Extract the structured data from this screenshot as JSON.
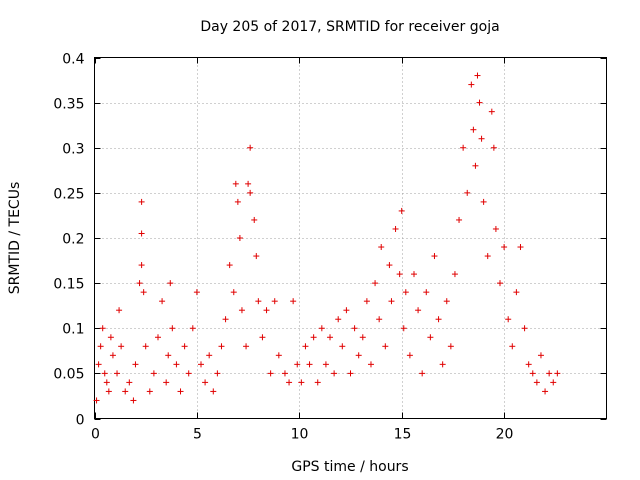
{
  "chart_data": {
    "type": "scatter",
    "title": "Day 205 of 2017, SRMTID for receiver goja",
    "xlabel": "GPS time / hours",
    "ylabel": "SRMTID / TECUs",
    "xlim": [
      0,
      25
    ],
    "ylim": [
      0,
      0.4
    ],
    "xticks": [
      0,
      5,
      10,
      15,
      20
    ],
    "yticks": [
      0,
      0.05,
      0.1,
      0.15,
      0.2,
      0.25,
      0.3,
      0.35,
      0.4
    ],
    "xtick_labels": [
      "0",
      "5",
      "10",
      "15",
      "20"
    ],
    "ytick_labels": [
      "0",
      "0.05",
      "0.1",
      "0.15",
      "0.2",
      "0.25",
      "0.3",
      "0.35",
      "0.4"
    ],
    "marker": "+",
    "color": "#e00000",
    "grid": true,
    "series": [
      {
        "name": "SRMTID",
        "points": [
          [
            0.1,
            0.02
          ],
          [
            0.2,
            0.06
          ],
          [
            0.3,
            0.08
          ],
          [
            0.4,
            0.1
          ],
          [
            0.5,
            0.05
          ],
          [
            0.6,
            0.04
          ],
          [
            0.7,
            0.03
          ],
          [
            0.8,
            0.09
          ],
          [
            0.9,
            0.07
          ],
          [
            1.1,
            0.05
          ],
          [
            1.2,
            0.12
          ],
          [
            1.3,
            0.08
          ],
          [
            1.5,
            0.03
          ],
          [
            1.7,
            0.04
          ],
          [
            1.9,
            0.02
          ],
          [
            2.0,
            0.06
          ],
          [
            2.2,
            0.15
          ],
          [
            2.3,
            0.24
          ],
          [
            2.3,
            0.205
          ],
          [
            2.3,
            0.17
          ],
          [
            2.4,
            0.14
          ],
          [
            2.5,
            0.08
          ],
          [
            2.7,
            0.03
          ],
          [
            2.9,
            0.05
          ],
          [
            3.1,
            0.09
          ],
          [
            3.3,
            0.13
          ],
          [
            3.5,
            0.04
          ],
          [
            3.6,
            0.07
          ],
          [
            3.7,
            0.15
          ],
          [
            3.8,
            0.1
          ],
          [
            4.0,
            0.06
          ],
          [
            4.2,
            0.03
          ],
          [
            4.4,
            0.08
          ],
          [
            4.6,
            0.05
          ],
          [
            4.8,
            0.1
          ],
          [
            5.0,
            0.14
          ],
          [
            5.2,
            0.06
          ],
          [
            5.4,
            0.04
          ],
          [
            5.6,
            0.07
          ],
          [
            5.8,
            0.03
          ],
          [
            6.0,
            0.05
          ],
          [
            6.2,
            0.08
          ],
          [
            6.4,
            0.11
          ],
          [
            6.6,
            0.17
          ],
          [
            6.8,
            0.14
          ],
          [
            6.9,
            0.26
          ],
          [
            7.0,
            0.24
          ],
          [
            7.1,
            0.2
          ],
          [
            7.2,
            0.12
          ],
          [
            7.4,
            0.08
          ],
          [
            7.5,
            0.26
          ],
          [
            7.6,
            0.25
          ],
          [
            7.6,
            0.3
          ],
          [
            7.8,
            0.22
          ],
          [
            7.9,
            0.18
          ],
          [
            8.0,
            0.13
          ],
          [
            8.2,
            0.09
          ],
          [
            8.4,
            0.12
          ],
          [
            8.6,
            0.05
          ],
          [
            8.8,
            0.13
          ],
          [
            9.0,
            0.07
          ],
          [
            9.3,
            0.05
          ],
          [
            9.5,
            0.04
          ],
          [
            9.7,
            0.13
          ],
          [
            9.9,
            0.06
          ],
          [
            10.1,
            0.04
          ],
          [
            10.3,
            0.08
          ],
          [
            10.5,
            0.06
          ],
          [
            10.7,
            0.09
          ],
          [
            10.9,
            0.04
          ],
          [
            11.1,
            0.1
          ],
          [
            11.3,
            0.06
          ],
          [
            11.5,
            0.09
          ],
          [
            11.7,
            0.05
          ],
          [
            11.9,
            0.11
          ],
          [
            12.1,
            0.08
          ],
          [
            12.3,
            0.12
          ],
          [
            12.5,
            0.05
          ],
          [
            12.7,
            0.1
          ],
          [
            12.9,
            0.07
          ],
          [
            13.1,
            0.09
          ],
          [
            13.3,
            0.13
          ],
          [
            13.5,
            0.06
          ],
          [
            13.7,
            0.15
          ],
          [
            13.9,
            0.11
          ],
          [
            14.0,
            0.19
          ],
          [
            14.2,
            0.08
          ],
          [
            14.4,
            0.17
          ],
          [
            14.5,
            0.13
          ],
          [
            14.7,
            0.21
          ],
          [
            14.9,
            0.16
          ],
          [
            15.0,
            0.23
          ],
          [
            15.1,
            0.1
          ],
          [
            15.2,
            0.14
          ],
          [
            15.4,
            0.07
          ],
          [
            15.6,
            0.16
          ],
          [
            15.8,
            0.12
          ],
          [
            16.0,
            0.05
          ],
          [
            16.2,
            0.14
          ],
          [
            16.4,
            0.09
          ],
          [
            16.6,
            0.18
          ],
          [
            16.8,
            0.11
          ],
          [
            17.0,
            0.06
          ],
          [
            17.2,
            0.13
          ],
          [
            17.4,
            0.08
          ],
          [
            17.6,
            0.16
          ],
          [
            17.8,
            0.22
          ],
          [
            18.0,
            0.3
          ],
          [
            18.2,
            0.25
          ],
          [
            18.4,
            0.37
          ],
          [
            18.5,
            0.32
          ],
          [
            18.6,
            0.28
          ],
          [
            18.7,
            0.38
          ],
          [
            18.8,
            0.35
          ],
          [
            18.9,
            0.31
          ],
          [
            19.0,
            0.24
          ],
          [
            19.2,
            0.18
          ],
          [
            19.4,
            0.34
          ],
          [
            19.5,
            0.3
          ],
          [
            19.6,
            0.21
          ],
          [
            19.8,
            0.15
          ],
          [
            20.0,
            0.19
          ],
          [
            20.2,
            0.11
          ],
          [
            20.4,
            0.08
          ],
          [
            20.6,
            0.14
          ],
          [
            20.8,
            0.19
          ],
          [
            21.0,
            0.1
          ],
          [
            21.2,
            0.06
          ],
          [
            21.4,
            0.05
          ],
          [
            21.6,
            0.04
          ],
          [
            21.8,
            0.07
          ],
          [
            22.0,
            0.03
          ],
          [
            22.2,
            0.05
          ],
          [
            22.4,
            0.04
          ],
          [
            22.6,
            0.05
          ]
        ]
      }
    ]
  }
}
